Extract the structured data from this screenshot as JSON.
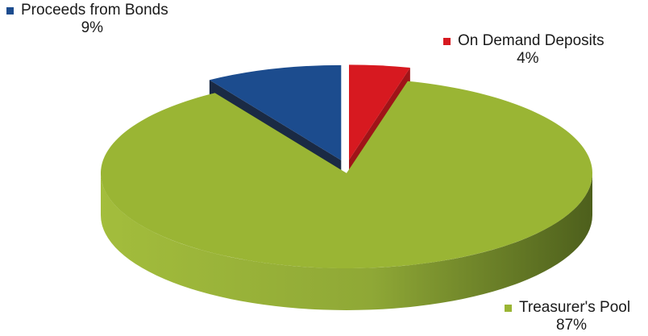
{
  "chart_data": {
    "type": "pie",
    "style": "3d-exploded",
    "slices": [
      {
        "label": "Proceeds from Bonds",
        "value": 9,
        "value_label": "9%",
        "color": "#1c4c8e",
        "side_color": "#1a2a44"
      },
      {
        "label": "On Demand Deposits",
        "value": 4,
        "value_label": "4%",
        "color": "#d71920",
        "side_color": "#a01418"
      },
      {
        "label": "Treasurer's Pool",
        "value": 87,
        "value_label": "87%",
        "color": "#9ab534",
        "side_color": "#6f8426"
      }
    ]
  }
}
